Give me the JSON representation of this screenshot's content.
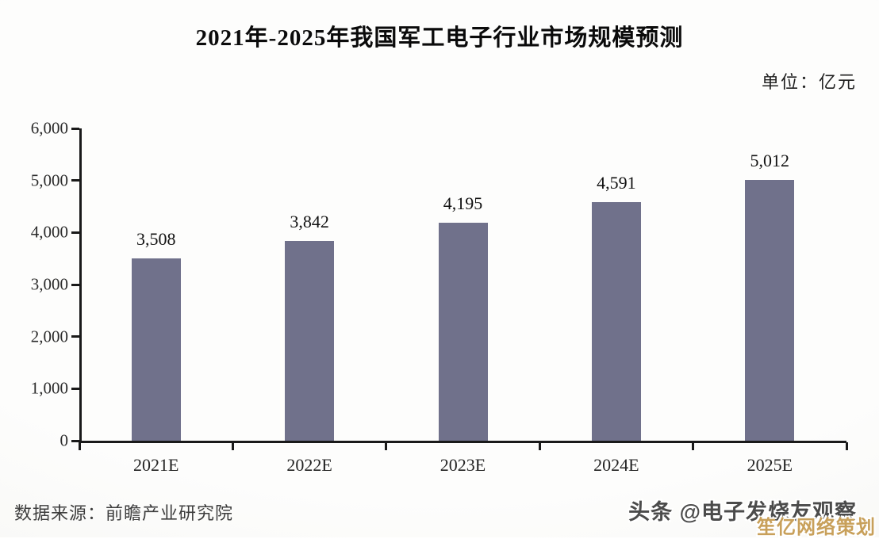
{
  "title": "2021年-2025年我国军工电子行业市场规模预测",
  "unit_label": "单位：亿元",
  "source_label": "数据来源：前瞻产业研究院",
  "watermarks": {
    "toutiao": "头条 @电子发烧友观察",
    "gold": "笙亿网络策划",
    "gold_color": "#c8a05a"
  },
  "chart_data": {
    "type": "bar",
    "title": "2021年-2025年我国军工电子行业市场规模预测",
    "unit": "亿元",
    "categories": [
      "2021E",
      "2022E",
      "2023E",
      "2024E",
      "2025E"
    ],
    "values": [
      3508,
      3842,
      4195,
      4591,
      5012
    ],
    "value_labels": [
      "3,508",
      "3,842",
      "4,195",
      "4,591",
      "5,012"
    ],
    "xlabel": "",
    "ylabel": "",
    "ylim": [
      0,
      6000
    ],
    "ytick_step": 1000,
    "ytick_labels": [
      "0",
      "1,000",
      "2,000",
      "3,000",
      "4,000",
      "5,000",
      "6,000"
    ],
    "bar_color": "#70718B",
    "grid": false,
    "legend": false
  }
}
